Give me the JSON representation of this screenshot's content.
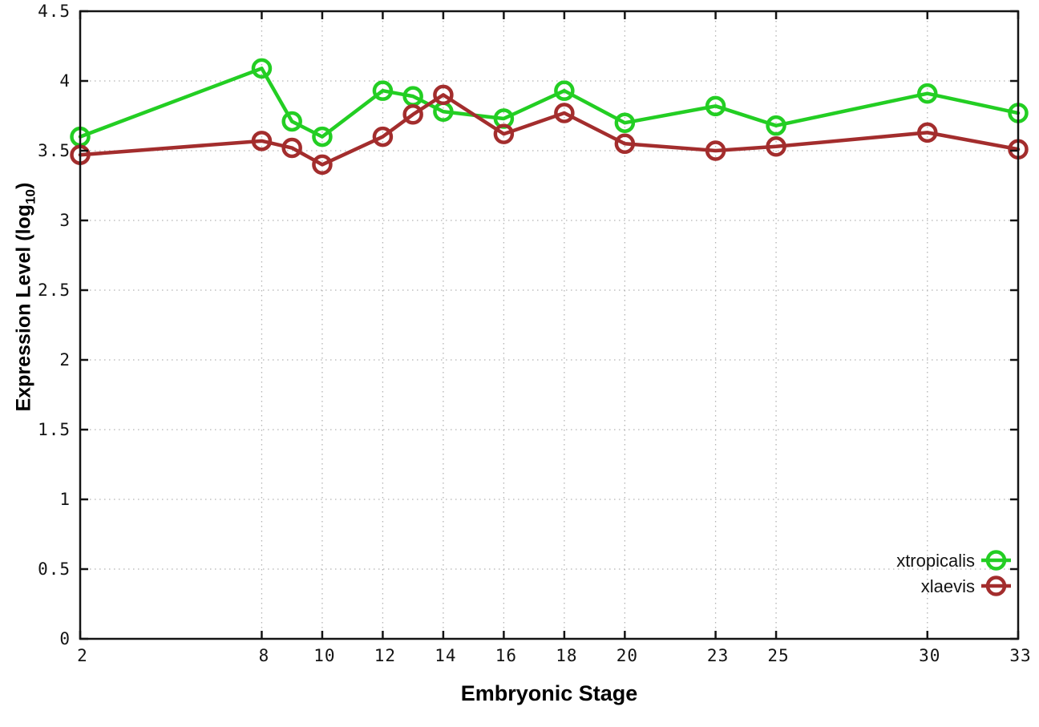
{
  "chart_data": {
    "type": "line",
    "title": "",
    "xlabel": "Embryonic Stage",
    "ylabel": "Expression Level (log10)",
    "ylabel_main": "Expression Level (log",
    "ylabel_sub": "10",
    "ylabel_close": ")",
    "x": [
      2,
      8,
      9,
      10,
      12,
      13,
      14,
      16,
      18,
      20,
      23,
      25,
      30,
      33
    ],
    "xlim": [
      2,
      33
    ],
    "ylim": [
      0,
      4.5
    ],
    "xtick_values": [
      2,
      8,
      10,
      12,
      14,
      16,
      18,
      20,
      23,
      25,
      30,
      33
    ],
    "xtick_labels": [
      "2",
      "8",
      "10",
      "12",
      "14",
      "16",
      "18",
      "20",
      "23",
      "25",
      "30",
      "33"
    ],
    "ytick_values": [
      0,
      0.5,
      1,
      1.5,
      2,
      2.5,
      3,
      3.5,
      4,
      4.5
    ],
    "ytick_labels": [
      "0",
      "0.5",
      "1",
      "1.5",
      "2",
      "2.5",
      "3",
      "3.5",
      "4",
      "4.5"
    ],
    "grid": true,
    "legend_position": "inside-bottom-right",
    "series": [
      {
        "name": "xtropicalis",
        "color": "#23ce23",
        "values": [
          3.6,
          4.09,
          3.71,
          3.6,
          3.93,
          3.89,
          3.78,
          3.73,
          3.93,
          3.7,
          3.82,
          3.68,
          3.91,
          3.77
        ]
      },
      {
        "name": "xlaevis",
        "color": "#a32d2d",
        "values": [
          3.47,
          3.57,
          3.52,
          3.4,
          3.6,
          3.76,
          3.9,
          3.62,
          3.77,
          3.55,
          3.5,
          3.53,
          3.63,
          3.51
        ]
      }
    ],
    "colors": {
      "axis": "#141414",
      "grid": "#b3b3b3",
      "background": "#ffffff",
      "text": "#000000"
    }
  }
}
